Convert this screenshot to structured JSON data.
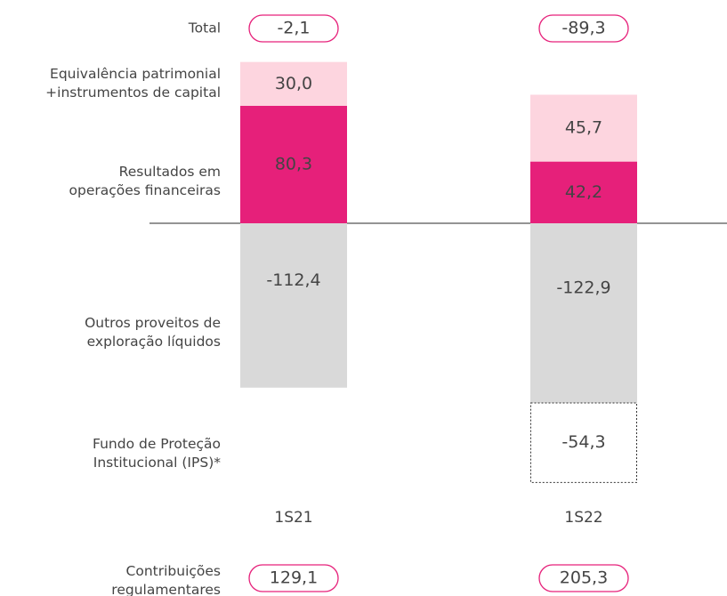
{
  "chart_data": {
    "type": "stacked_bar",
    "categories": [
      "1S21",
      "1S22"
    ],
    "series": [
      {
        "name": "Resultados em operações financeiras",
        "color": "#e6207a",
        "values": [
          80.3,
          42.2
        ],
        "value_labels": [
          "80,3",
          "42,2"
        ]
      },
      {
        "name": "Equivalência patrimonial +instrumentos de capital",
        "color": "#fdd5df",
        "values": [
          30.0,
          45.7
        ],
        "value_labels": [
          "30,0",
          "45,7"
        ]
      },
      {
        "name": "Outros proveitos de exploração líquidos",
        "color": "#d9d9d9",
        "values": [
          -112.4,
          -122.9
        ],
        "value_labels": [
          "-112,4",
          "-122,9"
        ]
      },
      {
        "name": "Fundo de Proteção Institucional (IPS)*",
        "color": "#ffffff",
        "values": [
          null,
          -54.3
        ],
        "value_labels": [
          null,
          "-54,3"
        ]
      }
    ],
    "totals": {
      "name": "Total",
      "values": [
        -2.1,
        -89.3
      ],
      "value_labels": [
        "-2,1",
        "-89,3"
      ]
    },
    "contributions": {
      "name": "Contribuições regulamentares",
      "values": [
        129.1,
        205.3
      ],
      "value_labels": [
        "129,1",
        "205,3"
      ]
    }
  }
}
